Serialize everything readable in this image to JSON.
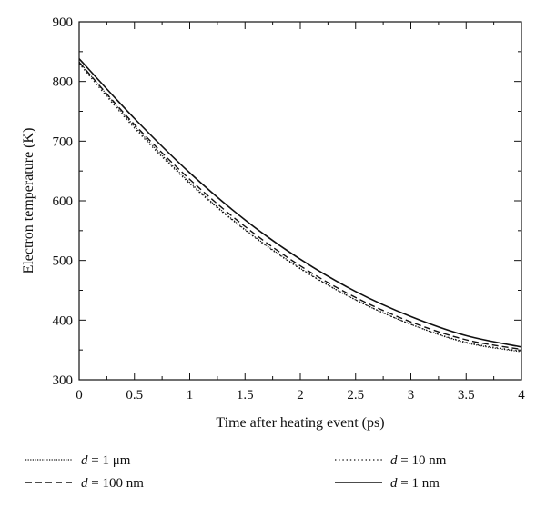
{
  "chart_data": {
    "type": "line",
    "title": "",
    "xlabel": "Time after heating event (ps)",
    "ylabel": "Electron temperature (K)",
    "xlim": [
      0,
      4
    ],
    "ylim": [
      300,
      900
    ],
    "xticks": [
      0,
      0.5,
      1,
      1.5,
      2,
      2.5,
      3,
      3.5,
      4
    ],
    "xtick_labels": [
      "0",
      "0.5",
      "1",
      "1.5",
      "2",
      "2.5",
      "3",
      "3.5",
      "4"
    ],
    "yticks": [
      300,
      400,
      500,
      600,
      700,
      800,
      900
    ],
    "ytick_labels": [
      "300",
      "400",
      "500",
      "600",
      "700",
      "800",
      "900"
    ],
    "grid": false,
    "legend_position": "bottom, below plot, two columns",
    "x": [
      0,
      0.5,
      1,
      1.5,
      2,
      2.5,
      3,
      3.5,
      4
    ],
    "series": [
      {
        "name": "d = 1 μm",
        "label_var": "d",
        "label_rest": " = 1 μm",
        "style": "dotted-dense",
        "values": [
          833,
          725,
          631,
          552,
          487,
          434,
          393,
          362,
          347
        ]
      },
      {
        "name": "d = 10 nm",
        "label_var": "d",
        "label_rest": " = 10 nm",
        "style": "dotted-sparse",
        "values": [
          830,
          722,
          629,
          551,
          486,
          434,
          393,
          363,
          348
        ]
      },
      {
        "name": "d = 100 nm",
        "label_var": "d",
        "label_rest": " = 100 nm",
        "style": "dashed",
        "values": [
          832,
          728,
          636,
          557,
          491,
          438,
          397,
          367,
          351
        ]
      },
      {
        "name": "d = 1 nm",
        "label_var": "d",
        "label_rest": " = 1 nm",
        "style": "solid",
        "values": [
          838,
          738,
          647,
          568,
          502,
          448,
          406,
          374,
          355
        ]
      }
    ]
  }
}
